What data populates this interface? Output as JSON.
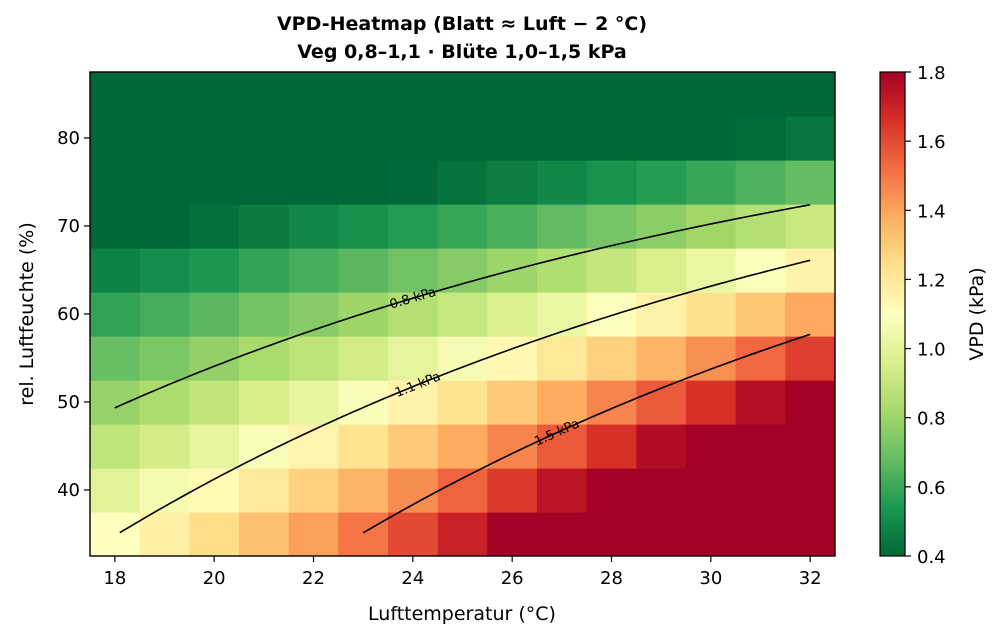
{
  "chart_data": {
    "type": "heatmap",
    "title": "VPD-Heatmap (Blatt ≈ Luft − 2 °C)",
    "subtitle": "Veg 0,8–1,1 · Blüte 1,0–1,5 kPa",
    "xlabel": "Lufttemperatur (°C)",
    "ylabel": "rel. Luftfeuchte (%)",
    "x": [
      18,
      19,
      20,
      21,
      22,
      23,
      24,
      25,
      26,
      27,
      28,
      29,
      30,
      31,
      32
    ],
    "y": [
      35,
      40,
      45,
      50,
      55,
      60,
      65,
      70,
      75,
      80,
      85
    ],
    "xlim": [
      17.5,
      32.5
    ],
    "ylim": [
      32.5,
      87.5
    ],
    "xticks": [
      "18",
      "20",
      "22",
      "24",
      "26",
      "28",
      "30",
      "32"
    ],
    "yticks": [
      "40",
      "50",
      "60",
      "70",
      "80"
    ],
    "colorbar": {
      "label": "VPD (kPa)",
      "range": [
        0.4,
        1.8
      ],
      "ticks": [
        "0.4",
        "0.6",
        "0.8",
        "1.0",
        "1.2",
        "1.4",
        "1.6",
        "1.8"
      ],
      "colormap": "RdYlGn_r"
    },
    "offset_leaf_minus_air_c": 2,
    "contours": [
      {
        "level": 0.8,
        "label": "0.8 kPa"
      },
      {
        "level": 1.1,
        "label": "1.1 kPa"
      },
      {
        "level": 1.5,
        "label": "1.5 kPa"
      }
    ],
    "grid": false
  }
}
